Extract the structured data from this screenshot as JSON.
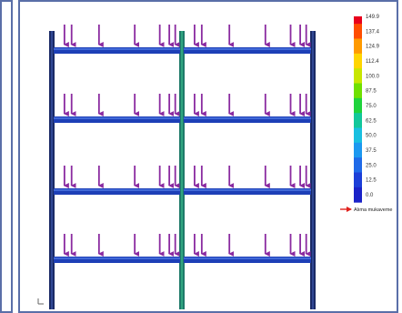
{
  "legend": {
    "title": "",
    "values": [
      "149.9",
      "137.4",
      "124.9",
      "112.4",
      "100.0",
      "87.5",
      "75.0",
      "62.5",
      "50.0",
      "37.5",
      "25.0",
      "12.5",
      "0.0"
    ],
    "colors": [
      "#e8001c",
      "#ff4d00",
      "#ff9a00",
      "#ffd500",
      "#c8e600",
      "#6fe000",
      "#1fd33c",
      "#12c79a",
      "#19bfe0",
      "#1c98f0",
      "#1f6ae8",
      "#1c3fd8",
      "#1a22c8"
    ]
  },
  "annotation": {
    "label": "Alıma mukaveme"
  },
  "structure": {
    "floors": 4,
    "bays": 2,
    "load_arrows_per_bay": 7,
    "beam_color": "#1d3fb7",
    "column_color": "#1a2a66",
    "arrow_color": "#8a2aa0"
  }
}
